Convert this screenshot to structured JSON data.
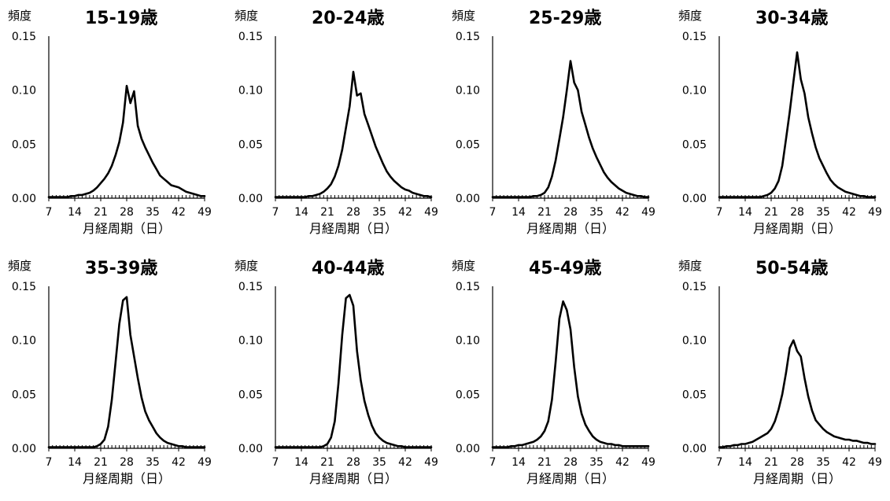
{
  "chart_data": [
    {
      "type": "line",
      "title": "15-19歳",
      "ylabel": "頻度",
      "xlabel": "月経周期（日）",
      "xlim": [
        7,
        49
      ],
      "ylim": [
        0,
        0.15
      ],
      "xticks": [
        7,
        14,
        21,
        28,
        35,
        42,
        49
      ],
      "yticks": [
        0.0,
        0.05,
        0.1,
        0.15
      ],
      "ytick_labels": [
        "0.00",
        "0.05",
        "0.10",
        "0.15"
      ],
      "grid": false,
      "x": [
        7,
        8,
        9,
        10,
        11,
        12,
        13,
        14,
        15,
        16,
        17,
        18,
        19,
        20,
        21,
        22,
        23,
        24,
        25,
        26,
        27,
        28,
        29,
        30,
        31,
        32,
        33,
        34,
        35,
        36,
        37,
        38,
        39,
        40,
        41,
        42,
        43,
        44,
        45,
        46,
        47,
        48,
        49
      ],
      "values": [
        0.001,
        0.001,
        0.001,
        0.001,
        0.001,
        0.001,
        0.002,
        0.002,
        0.003,
        0.003,
        0.004,
        0.005,
        0.007,
        0.01,
        0.014,
        0.018,
        0.023,
        0.03,
        0.04,
        0.052,
        0.07,
        0.104,
        0.088,
        0.099,
        0.067,
        0.055,
        0.047,
        0.04,
        0.033,
        0.027,
        0.021,
        0.018,
        0.015,
        0.012,
        0.011,
        0.01,
        0.008,
        0.006,
        0.005,
        0.004,
        0.003,
        0.002,
        0.002
      ]
    },
    {
      "type": "line",
      "title": "20-24歳",
      "ylabel": "頻度",
      "xlabel": "月経周期（日）",
      "xlim": [
        7,
        49
      ],
      "ylim": [
        0,
        0.15
      ],
      "xticks": [
        7,
        14,
        21,
        28,
        35,
        42,
        49
      ],
      "yticks": [
        0.0,
        0.05,
        0.1,
        0.15
      ],
      "ytick_labels": [
        "0.00",
        "0.05",
        "0.10",
        "0.15"
      ],
      "grid": false,
      "x": [
        7,
        8,
        9,
        10,
        11,
        12,
        13,
        14,
        15,
        16,
        17,
        18,
        19,
        20,
        21,
        22,
        23,
        24,
        25,
        26,
        27,
        28,
        29,
        30,
        31,
        32,
        33,
        34,
        35,
        36,
        37,
        38,
        39,
        40,
        41,
        42,
        43,
        44,
        45,
        46,
        47,
        48,
        49
      ],
      "values": [
        0.001,
        0.001,
        0.001,
        0.001,
        0.001,
        0.001,
        0.001,
        0.001,
        0.001,
        0.002,
        0.002,
        0.003,
        0.004,
        0.006,
        0.009,
        0.013,
        0.02,
        0.03,
        0.045,
        0.065,
        0.085,
        0.117,
        0.095,
        0.097,
        0.078,
        0.068,
        0.058,
        0.048,
        0.04,
        0.032,
        0.025,
        0.02,
        0.016,
        0.013,
        0.01,
        0.008,
        0.007,
        0.005,
        0.004,
        0.003,
        0.002,
        0.002,
        0.001
      ]
    },
    {
      "type": "line",
      "title": "25-29歳",
      "ylabel": "頻度",
      "xlabel": "月経周期（日）",
      "xlim": [
        7,
        49
      ],
      "ylim": [
        0,
        0.15
      ],
      "xticks": [
        7,
        14,
        21,
        28,
        35,
        42,
        49
      ],
      "yticks": [
        0.0,
        0.05,
        0.1,
        0.15
      ],
      "ytick_labels": [
        "0.00",
        "0.05",
        "0.10",
        "0.15"
      ],
      "grid": false,
      "x": [
        7,
        8,
        9,
        10,
        11,
        12,
        13,
        14,
        15,
        16,
        17,
        18,
        19,
        20,
        21,
        22,
        23,
        24,
        25,
        26,
        27,
        28,
        29,
        30,
        31,
        32,
        33,
        34,
        35,
        36,
        37,
        38,
        39,
        40,
        41,
        42,
        43,
        44,
        45,
        46,
        47,
        48,
        49
      ],
      "values": [
        0.001,
        0.001,
        0.001,
        0.001,
        0.001,
        0.001,
        0.001,
        0.001,
        0.001,
        0.001,
        0.001,
        0.002,
        0.002,
        0.003,
        0.005,
        0.01,
        0.02,
        0.035,
        0.055,
        0.075,
        0.1,
        0.127,
        0.107,
        0.1,
        0.08,
        0.068,
        0.056,
        0.046,
        0.038,
        0.031,
        0.024,
        0.019,
        0.015,
        0.012,
        0.009,
        0.007,
        0.005,
        0.004,
        0.003,
        0.002,
        0.002,
        0.001,
        0.001
      ]
    },
    {
      "type": "line",
      "title": "30-34歳",
      "ylabel": "頻度",
      "xlabel": "月経周期（日）",
      "xlim": [
        7,
        49
      ],
      "ylim": [
        0,
        0.15
      ],
      "xticks": [
        7,
        14,
        21,
        28,
        35,
        42,
        49
      ],
      "yticks": [
        0.0,
        0.05,
        0.1,
        0.15
      ],
      "ytick_labels": [
        "0.00",
        "0.05",
        "0.10",
        "0.15"
      ],
      "grid": false,
      "x": [
        7,
        8,
        9,
        10,
        11,
        12,
        13,
        14,
        15,
        16,
        17,
        18,
        19,
        20,
        21,
        22,
        23,
        24,
        25,
        26,
        27,
        28,
        29,
        30,
        31,
        32,
        33,
        34,
        35,
        36,
        37,
        38,
        39,
        40,
        41,
        42,
        43,
        44,
        45,
        46,
        47,
        48,
        49
      ],
      "values": [
        0.001,
        0.001,
        0.001,
        0.001,
        0.001,
        0.001,
        0.001,
        0.001,
        0.001,
        0.001,
        0.001,
        0.001,
        0.002,
        0.003,
        0.005,
        0.009,
        0.016,
        0.03,
        0.055,
        0.08,
        0.108,
        0.135,
        0.11,
        0.097,
        0.075,
        0.06,
        0.047,
        0.037,
        0.03,
        0.023,
        0.017,
        0.013,
        0.01,
        0.008,
        0.006,
        0.005,
        0.004,
        0.003,
        0.002,
        0.002,
        0.001,
        0.001,
        0.001
      ]
    },
    {
      "type": "line",
      "title": "35-39歳",
      "ylabel": "頻度",
      "xlabel": "月経周期（日）",
      "xlim": [
        7,
        49
      ],
      "ylim": [
        0,
        0.15
      ],
      "xticks": [
        7,
        14,
        21,
        28,
        35,
        42,
        49
      ],
      "yticks": [
        0.0,
        0.05,
        0.1,
        0.15
      ],
      "ytick_labels": [
        "0.00",
        "0.05",
        "0.10",
        "0.15"
      ],
      "grid": false,
      "x": [
        7,
        8,
        9,
        10,
        11,
        12,
        13,
        14,
        15,
        16,
        17,
        18,
        19,
        20,
        21,
        22,
        23,
        24,
        25,
        26,
        27,
        28,
        29,
        30,
        31,
        32,
        33,
        34,
        35,
        36,
        37,
        38,
        39,
        40,
        41,
        42,
        43,
        44,
        45,
        46,
        47,
        48,
        49
      ],
      "values": [
        0.001,
        0.001,
        0.001,
        0.001,
        0.001,
        0.001,
        0.001,
        0.001,
        0.001,
        0.001,
        0.001,
        0.001,
        0.001,
        0.002,
        0.004,
        0.008,
        0.02,
        0.045,
        0.08,
        0.115,
        0.137,
        0.14,
        0.105,
        0.085,
        0.065,
        0.047,
        0.034,
        0.026,
        0.02,
        0.014,
        0.01,
        0.007,
        0.005,
        0.004,
        0.003,
        0.002,
        0.002,
        0.001,
        0.001,
        0.001,
        0.001,
        0.001,
        0.001
      ]
    },
    {
      "type": "line",
      "title": "40-44歳",
      "ylabel": "頻度",
      "xlabel": "月経周期（日）",
      "xlim": [
        7,
        49
      ],
      "ylim": [
        0,
        0.15
      ],
      "xticks": [
        7,
        14,
        21,
        28,
        35,
        42,
        49
      ],
      "yticks": [
        0.0,
        0.05,
        0.1,
        0.15
      ],
      "ytick_labels": [
        "0.00",
        "0.05",
        "0.10",
        "0.15"
      ],
      "grid": false,
      "x": [
        7,
        8,
        9,
        10,
        11,
        12,
        13,
        14,
        15,
        16,
        17,
        18,
        19,
        20,
        21,
        22,
        23,
        24,
        25,
        26,
        27,
        28,
        29,
        30,
        31,
        32,
        33,
        34,
        35,
        36,
        37,
        38,
        39,
        40,
        41,
        42,
        43,
        44,
        45,
        46,
        47,
        48,
        49
      ],
      "values": [
        0.001,
        0.001,
        0.001,
        0.001,
        0.001,
        0.001,
        0.001,
        0.001,
        0.001,
        0.001,
        0.001,
        0.001,
        0.001,
        0.002,
        0.004,
        0.01,
        0.025,
        0.06,
        0.105,
        0.139,
        0.142,
        0.132,
        0.09,
        0.063,
        0.044,
        0.031,
        0.021,
        0.014,
        0.01,
        0.007,
        0.005,
        0.004,
        0.003,
        0.002,
        0.002,
        0.001,
        0.001,
        0.001,
        0.001,
        0.001,
        0.001,
        0.001,
        0.001
      ]
    },
    {
      "type": "line",
      "title": "45-49歳",
      "ylabel": "頻度",
      "xlabel": "月経周期（日）",
      "xlim": [
        7,
        49
      ],
      "ylim": [
        0,
        0.15
      ],
      "xticks": [
        7,
        14,
        21,
        28,
        35,
        42,
        49
      ],
      "yticks": [
        0.0,
        0.05,
        0.1,
        0.15
      ],
      "ytick_labels": [
        "0.00",
        "0.05",
        "0.10",
        "0.15"
      ],
      "grid": false,
      "x": [
        7,
        8,
        9,
        10,
        11,
        12,
        13,
        14,
        15,
        16,
        17,
        18,
        19,
        20,
        21,
        22,
        23,
        24,
        25,
        26,
        27,
        28,
        29,
        30,
        31,
        32,
        33,
        34,
        35,
        36,
        37,
        38,
        39,
        40,
        41,
        42,
        43,
        44,
        45,
        46,
        47,
        48,
        49
      ],
      "values": [
        0.001,
        0.001,
        0.001,
        0.001,
        0.001,
        0.002,
        0.002,
        0.003,
        0.003,
        0.004,
        0.005,
        0.006,
        0.008,
        0.011,
        0.016,
        0.025,
        0.045,
        0.08,
        0.12,
        0.136,
        0.128,
        0.11,
        0.075,
        0.048,
        0.032,
        0.022,
        0.016,
        0.011,
        0.008,
        0.006,
        0.005,
        0.004,
        0.004,
        0.003,
        0.003,
        0.002,
        0.002,
        0.002,
        0.002,
        0.002,
        0.002,
        0.002,
        0.002
      ]
    },
    {
      "type": "line",
      "title": "50-54歳",
      "ylabel": "頻度",
      "xlabel": "月経周期（日）",
      "xlim": [
        7,
        49
      ],
      "ylim": [
        0,
        0.15
      ],
      "xticks": [
        7,
        14,
        21,
        28,
        35,
        42,
        49
      ],
      "yticks": [
        0.0,
        0.05,
        0.1,
        0.15
      ],
      "ytick_labels": [
        "0.00",
        "0.05",
        "0.10",
        "0.15"
      ],
      "grid": false,
      "x": [
        7,
        8,
        9,
        10,
        11,
        12,
        13,
        14,
        15,
        16,
        17,
        18,
        19,
        20,
        21,
        22,
        23,
        24,
        25,
        26,
        27,
        28,
        29,
        30,
        31,
        32,
        33,
        34,
        35,
        36,
        37,
        38,
        39,
        40,
        41,
        42,
        43,
        44,
        45,
        46,
        47,
        48,
        49
      ],
      "values": [
        0.001,
        0.001,
        0.002,
        0.002,
        0.003,
        0.003,
        0.004,
        0.004,
        0.005,
        0.006,
        0.008,
        0.01,
        0.012,
        0.014,
        0.018,
        0.025,
        0.036,
        0.05,
        0.07,
        0.093,
        0.1,
        0.09,
        0.085,
        0.065,
        0.048,
        0.035,
        0.026,
        0.022,
        0.018,
        0.015,
        0.013,
        0.011,
        0.01,
        0.009,
        0.008,
        0.008,
        0.007,
        0.007,
        0.006,
        0.005,
        0.005,
        0.004,
        0.004
      ]
    }
  ]
}
